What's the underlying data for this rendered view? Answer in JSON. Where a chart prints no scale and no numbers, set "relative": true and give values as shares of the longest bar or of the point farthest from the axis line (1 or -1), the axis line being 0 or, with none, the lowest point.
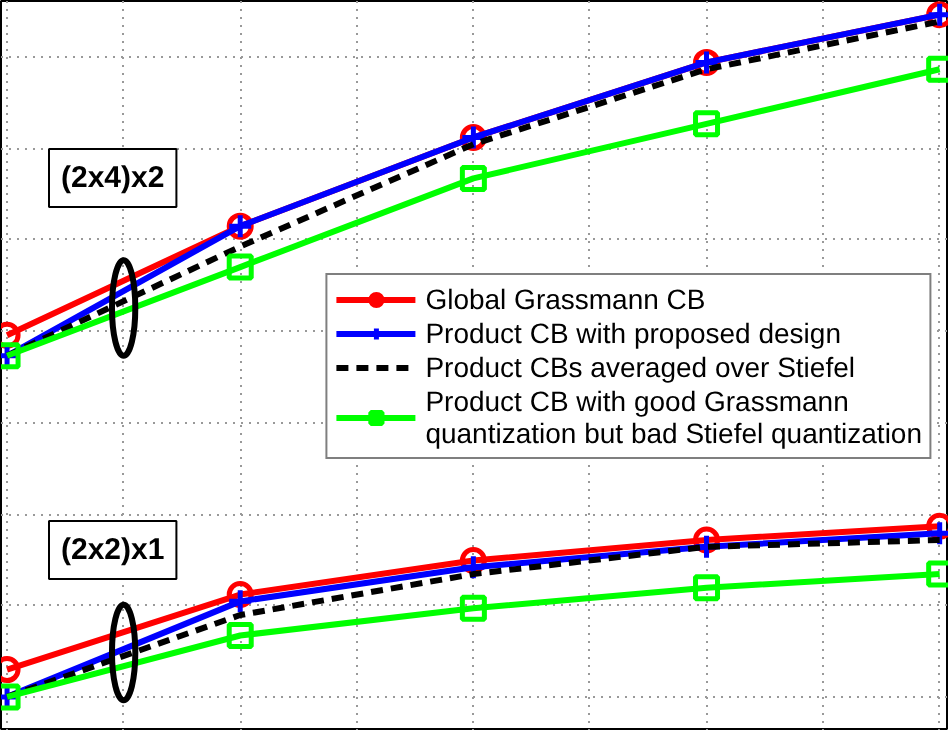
{
  "chart_data": {
    "type": "line",
    "relative": true,
    "categories": [
      null,
      null,
      null,
      null,
      null
    ],
    "series": [
      {
        "name": "Global Grassmann CB",
        "color": "#ff0000",
        "marker": "circle",
        "values": [
          0.53,
          0.69,
          0.82,
          0.93,
          1
        ]
      },
      {
        "name": "Product CB with proposed design",
        "color": "#0000ff",
        "marker": "cross",
        "values": [
          0.5,
          0.69,
          0.82,
          0.93,
          1
        ]
      },
      {
        "name": "Product CBs averaged over Stiefel",
        "color": "#000000",
        "marker": "none",
        "line_style": "dashed",
        "values": [
          0.5,
          0.66,
          0.81,
          0.92,
          0.99
        ]
      },
      {
        "name": "Product CB with good Grassmann\nquantization but bad Stiefel quantization",
        "color": "#00ff00",
        "marker": "square",
        "values": [
          0.5,
          0.63,
          0.76,
          0.84,
          0.92
        ]
      },
      {
        "color": "#ff0000",
        "marker": "circle",
        "values": [
          0.04,
          0.15,
          0.2,
          0.23,
          0.25
        ]
      },
      {
        "color": "#0000ff",
        "marker": "cross",
        "values": [
          0,
          0.14,
          0.19,
          0.22,
          0.24
        ]
      },
      {
        "color": "#000000",
        "marker": "none",
        "line_style": "dashed",
        "values": [
          0,
          0.12,
          0.18,
          0.22,
          0.23
        ]
      },
      {
        "color": "#00ff00",
        "marker": "square",
        "values": [
          0,
          0.09,
          0.13,
          0.16,
          0.18
        ]
      }
    ],
    "annotations": [
      "(2x4)x2",
      "(2x2)x1"
    ],
    "grid": true,
    "legend": "right",
    "tick_labels": false
  }
}
